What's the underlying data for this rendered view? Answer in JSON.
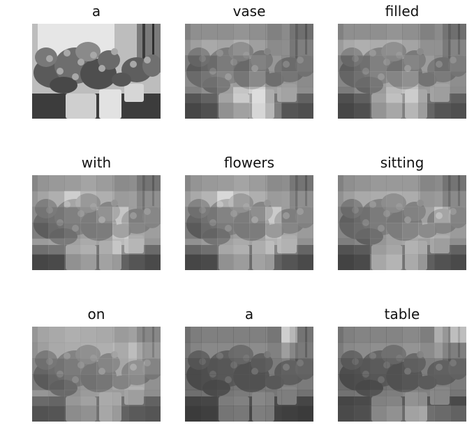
{
  "figure": {
    "panels": [
      {
        "word": "a",
        "weights": [
          [
            100,
            100,
            100,
            100,
            100,
            100,
            100,
            100
          ],
          [
            100,
            100,
            100,
            100,
            100,
            100,
            100,
            100
          ],
          [
            100,
            100,
            100,
            100,
            100,
            100,
            100,
            100
          ],
          [
            100,
            100,
            100,
            100,
            100,
            100,
            100,
            100
          ],
          [
            100,
            100,
            100,
            100,
            100,
            100,
            100,
            100
          ],
          [
            100,
            100,
            100,
            100,
            100,
            100,
            100,
            100
          ]
        ]
      },
      {
        "word": "vase",
        "weights": [
          [
            42,
            42,
            42,
            45,
            42,
            42,
            48,
            45
          ],
          [
            52,
            58,
            55,
            62,
            52,
            48,
            50,
            55
          ],
          [
            38,
            45,
            55,
            50,
            60,
            55,
            48,
            52
          ],
          [
            48,
            55,
            62,
            58,
            70,
            52,
            55,
            48
          ],
          [
            42,
            50,
            60,
            85,
            92,
            62,
            58,
            50
          ],
          [
            32,
            38,
            48,
            58,
            88,
            68,
            42,
            38
          ]
        ]
      },
      {
        "word": "filled",
        "weights": [
          [
            42,
            42,
            42,
            45,
            42,
            42,
            48,
            45
          ],
          [
            58,
            62,
            60,
            62,
            55,
            52,
            52,
            58
          ],
          [
            40,
            48,
            58,
            55,
            62,
            58,
            50,
            55
          ],
          [
            45,
            52,
            60,
            68,
            75,
            55,
            58,
            50
          ],
          [
            38,
            48,
            58,
            78,
            82,
            58,
            55,
            48
          ],
          [
            32,
            38,
            50,
            62,
            68,
            52,
            42,
            38
          ]
        ]
      },
      {
        "word": "with",
        "weights": [
          [
            45,
            48,
            50,
            55,
            50,
            48,
            50,
            48
          ],
          [
            55,
            62,
            82,
            68,
            62,
            58,
            60,
            65
          ],
          [
            48,
            52,
            58,
            62,
            70,
            85,
            60,
            62
          ],
          [
            40,
            48,
            55,
            60,
            62,
            85,
            65,
            60
          ],
          [
            58,
            62,
            62,
            68,
            62,
            78,
            70,
            55
          ],
          [
            32,
            35,
            48,
            55,
            55,
            50,
            42,
            35
          ]
        ]
      },
      {
        "word": "flowers",
        "weights": [
          [
            45,
            48,
            50,
            55,
            50,
            48,
            50,
            48
          ],
          [
            58,
            65,
            88,
            70,
            62,
            58,
            60,
            65
          ],
          [
            45,
            52,
            60,
            62,
            68,
            88,
            60,
            62
          ],
          [
            38,
            48,
            55,
            60,
            62,
            80,
            65,
            58
          ],
          [
            52,
            58,
            62,
            68,
            62,
            72,
            68,
            52
          ],
          [
            32,
            35,
            48,
            55,
            55,
            50,
            42,
            35
          ]
        ]
      },
      {
        "word": "sitting",
        "weights": [
          [
            42,
            45,
            48,
            48,
            48,
            45,
            48,
            48
          ],
          [
            52,
            58,
            60,
            62,
            60,
            55,
            58,
            62
          ],
          [
            42,
            48,
            55,
            58,
            60,
            62,
            85,
            60
          ],
          [
            45,
            50,
            55,
            62,
            68,
            70,
            65,
            58
          ],
          [
            40,
            45,
            55,
            62,
            65,
            60,
            55,
            50
          ],
          [
            30,
            35,
            62,
            70,
            60,
            48,
            40,
            35
          ]
        ]
      },
      {
        "word": "on",
        "weights": [
          [
            55,
            58,
            62,
            60,
            58,
            58,
            62,
            60
          ],
          [
            52,
            58,
            60,
            62,
            62,
            68,
            80,
            70
          ],
          [
            45,
            50,
            55,
            58,
            62,
            65,
            72,
            60
          ],
          [
            38,
            45,
            52,
            55,
            58,
            65,
            68,
            52
          ],
          [
            55,
            52,
            52,
            58,
            60,
            58,
            55,
            50
          ],
          [
            40,
            42,
            45,
            48,
            58,
            50,
            45,
            42
          ]
        ]
      },
      {
        "word": "a",
        "weights": [
          [
            30,
            32,
            32,
            32,
            32,
            35,
            90,
            48
          ],
          [
            35,
            38,
            38,
            40,
            40,
            42,
            60,
            52
          ],
          [
            28,
            30,
            32,
            35,
            35,
            38,
            42,
            40
          ],
          [
            28,
            30,
            32,
            35,
            35,
            38,
            40,
            38
          ],
          [
            30,
            32,
            35,
            38,
            38,
            35,
            35,
            32
          ],
          [
            25,
            28,
            30,
            32,
            32,
            30,
            28,
            25
          ]
        ]
      },
      {
        "word": "table",
        "weights": [
          [
            32,
            35,
            35,
            35,
            38,
            40,
            70,
            95
          ],
          [
            38,
            40,
            42,
            42,
            45,
            48,
            58,
            55
          ],
          [
            30,
            32,
            35,
            35,
            38,
            40,
            42,
            40
          ],
          [
            28,
            30,
            32,
            35,
            38,
            40,
            40,
            38
          ],
          [
            32,
            35,
            38,
            40,
            45,
            42,
            40,
            35
          ],
          [
            35,
            38,
            42,
            48,
            55,
            58,
            55,
            50
          ]
        ]
      }
    ]
  }
}
